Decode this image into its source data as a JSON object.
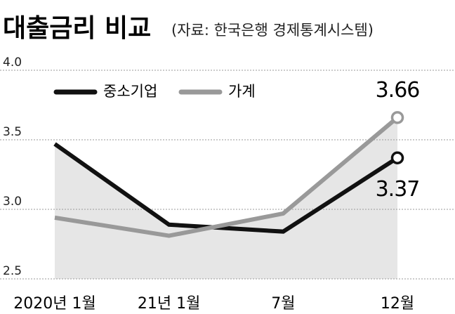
{
  "chart_data": {
    "type": "line",
    "title": "대출금리 비교",
    "subtitle": "(자료: 한국은행 경제통계시스템)",
    "categories": [
      "2020년 1월",
      "21년 1월",
      "7월",
      "12월"
    ],
    "series": [
      {
        "name": "중소기업",
        "color": "#111111",
        "values": [
          3.47,
          2.89,
          2.84,
          3.37
        ]
      },
      {
        "name": "가계",
        "color": "#999999",
        "values": [
          2.94,
          2.81,
          2.97,
          3.66
        ]
      }
    ],
    "ylim": [
      2.5,
      4.0
    ],
    "yticks": [
      2.5,
      {
        "value": 3.0,
        "label": "3.0"
      },
      3.5,
      {
        "value": 4.0,
        "label": "4.0"
      }
    ],
    "grid": true
  }
}
